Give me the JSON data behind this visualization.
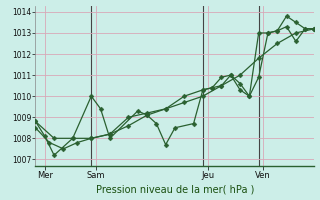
{
  "background_color": "#cceee8",
  "grid_color": "#d8a8b8",
  "line_color": "#2a6030",
  "marker_color": "#2a6030",
  "ylabel_ticks": [
    1007,
    1008,
    1009,
    1010,
    1011,
    1012,
    1013,
    1014
  ],
  "ylim": [
    1006.7,
    1014.3
  ],
  "xlim": [
    0,
    60
  ],
  "xlabel": "Pression niveau de la mer( hPa )",
  "day_labels": [
    "Mer",
    "Sam",
    "Jeu",
    "Ven"
  ],
  "day_positions": [
    2,
    13,
    37,
    49
  ],
  "vline_positions": [
    12,
    36,
    48
  ],
  "line1_x": [
    0,
    2,
    4,
    8,
    12,
    14,
    16,
    22,
    24,
    26,
    28,
    30,
    34,
    36,
    38,
    40,
    42,
    44,
    46,
    48,
    50,
    52,
    54,
    56,
    58,
    60
  ],
  "line1_y": [
    1008.8,
    1008.1,
    1007.2,
    1008.0,
    1010.0,
    1009.4,
    1008.0,
    1009.3,
    1009.1,
    1008.7,
    1007.7,
    1008.5,
    1008.7,
    1010.3,
    1010.4,
    1010.5,
    1011.0,
    1010.6,
    1010.0,
    1010.9,
    1013.0,
    1013.1,
    1013.8,
    1013.5,
    1013.2,
    1013.2
  ],
  "line2_x": [
    0,
    3,
    6,
    9,
    12,
    16,
    20,
    24,
    28,
    32,
    36,
    40,
    44,
    48,
    52,
    56,
    60
  ],
  "line2_y": [
    1008.5,
    1007.8,
    1007.5,
    1007.8,
    1008.0,
    1008.2,
    1008.6,
    1009.1,
    1009.4,
    1009.7,
    1010.0,
    1010.5,
    1011.0,
    1011.8,
    1012.5,
    1013.0,
    1013.2
  ],
  "line3_x": [
    0,
    4,
    8,
    12,
    16,
    20,
    24,
    28,
    32,
    36,
    38,
    40,
    42,
    44,
    46,
    48,
    50,
    52,
    54,
    56,
    58,
    60
  ],
  "line3_y": [
    1008.8,
    1008.0,
    1008.0,
    1008.0,
    1008.2,
    1009.0,
    1009.2,
    1009.4,
    1010.0,
    1010.3,
    1010.4,
    1010.9,
    1011.0,
    1010.3,
    1010.0,
    1013.0,
    1013.0,
    1013.1,
    1013.3,
    1012.6,
    1013.2,
    1013.2
  ]
}
